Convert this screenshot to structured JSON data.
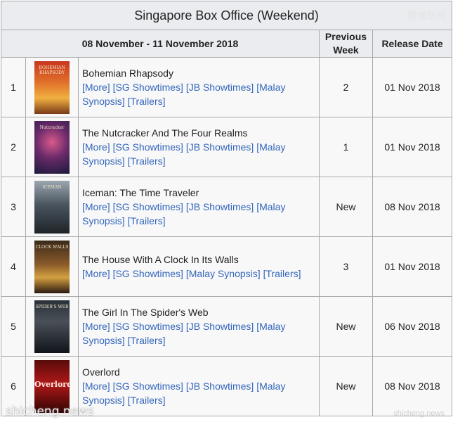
{
  "table": {
    "title": "Singapore Box Office (Weekend)",
    "watermark": "狮城新闻",
    "date_range": "08 November - 11 November 2018",
    "col_previous": "Previous Week",
    "col_release": "Release Date"
  },
  "rows": [
    {
      "rank": "1",
      "title": "Bohemian Rhapsody",
      "links": [
        "[More]",
        "[SG Showtimes]",
        "[JB Showtimes]",
        "[Malay Synopsis]",
        "[Trailers]"
      ],
      "previous": "2",
      "release": "01 Nov 2018",
      "poster_text": "BOHEMIAN RHAPSODY"
    },
    {
      "rank": "2",
      "title": "The Nutcracker And The Four Realms",
      "links": [
        "[More]",
        "[SG Showtimes]",
        "[JB Showtimes]",
        "[Malay Synopsis]",
        "[Trailers]"
      ],
      "previous": "1",
      "release": "01 Nov 2018",
      "poster_text": "Nutcracker"
    },
    {
      "rank": "3",
      "title": "Iceman: The Time Traveler",
      "links": [
        "[More]",
        "[SG Showtimes]",
        "[JB Showtimes]",
        "[Malay Synopsis]",
        "[Trailers]"
      ],
      "previous": "New",
      "release": "08 Nov 2018",
      "poster_text": "ICEMAN"
    },
    {
      "rank": "4",
      "title": "The House With A Clock In Its Walls",
      "links": [
        "[More]",
        "[SG Showtimes]",
        "[Malay Synopsis]",
        "[Trailers]"
      ],
      "previous": "3",
      "release": "01 Nov 2018",
      "poster_text": "CLOCK WALLS"
    },
    {
      "rank": "5",
      "title": "The Girl In The Spider's Web",
      "links": [
        "[More]",
        "[SG Showtimes]",
        "[JB Showtimes]",
        "[Malay Synopsis]",
        "[Trailers]"
      ],
      "previous": "New",
      "release": "06 Nov 2018",
      "poster_text": "SPIDER'S WEB"
    },
    {
      "rank": "6",
      "title": "Overlord",
      "links": [
        "[More]",
        "[SG Showtimes]",
        "[JB Showtimes]",
        "[Malay Synopsis]",
        "[Trailers]"
      ],
      "previous": "New",
      "release": "08 Nov 2018",
      "poster_text": "Overlord"
    }
  ],
  "footer": {
    "watermark_left": "shicheng.news",
    "watermark_right": "shicheng.news"
  }
}
